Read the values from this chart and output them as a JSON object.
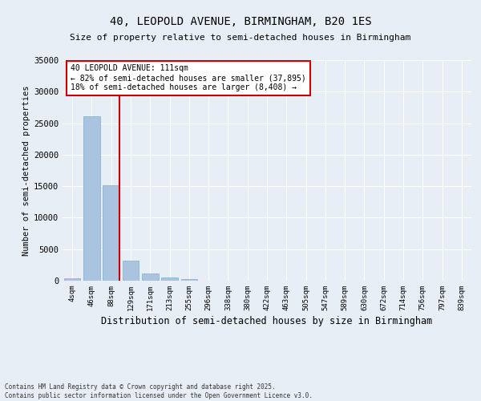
{
  "title": "40, LEOPOLD AVENUE, BIRMINGHAM, B20 1ES",
  "subtitle": "Size of property relative to semi-detached houses in Birmingham",
  "xlabel": "Distribution of semi-detached houses by size in Birmingham",
  "ylabel": "Number of semi-detached properties",
  "categories": [
    "4sqm",
    "46sqm",
    "88sqm",
    "129sqm",
    "171sqm",
    "213sqm",
    "255sqm",
    "296sqm",
    "338sqm",
    "380sqm",
    "422sqm",
    "463sqm",
    "505sqm",
    "547sqm",
    "589sqm",
    "630sqm",
    "672sqm",
    "714sqm",
    "756sqm",
    "797sqm",
    "839sqm"
  ],
  "values": [
    350,
    26100,
    15100,
    3200,
    1200,
    450,
    200,
    50,
    0,
    0,
    0,
    0,
    0,
    0,
    0,
    0,
    0,
    0,
    0,
    0,
    0
  ],
  "bar_color": "#aac4e0",
  "bar_edge_color": "#7aafd0",
  "ylim": [
    0,
    35000
  ],
  "yticks": [
    0,
    5000,
    10000,
    15000,
    20000,
    25000,
    30000,
    35000
  ],
  "property_bar_index": 2,
  "vline_color": "#cc0000",
  "annotation_line1": "40 LEOPOLD AVENUE: 111sqm",
  "annotation_line2": "← 82% of semi-detached houses are smaller (37,895)",
  "annotation_line3": "18% of semi-detached houses are larger (8,408) →",
  "annotation_edge_color": "#cc0000",
  "bg_color": "#e8eef5",
  "grid_color": "#ffffff",
  "footer": "Contains HM Land Registry data © Crown copyright and database right 2025.\nContains public sector information licensed under the Open Government Licence v3.0."
}
